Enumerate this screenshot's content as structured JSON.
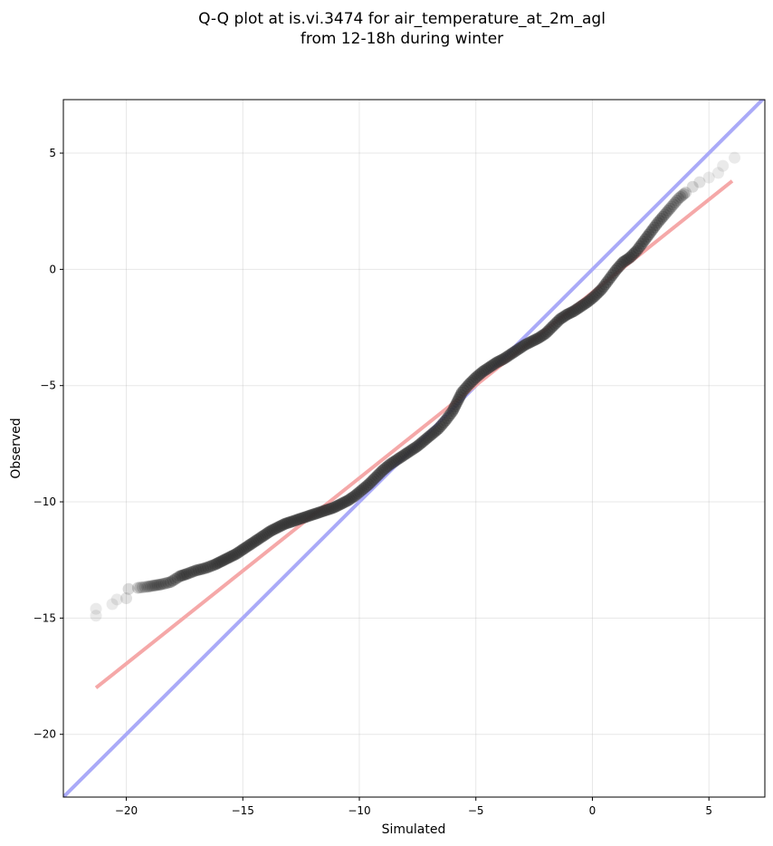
{
  "chart_data": {
    "type": "scatter",
    "title_line1": "Q-Q plot at is.vi.3474 for air_temperature_at_2m_agl",
    "title_line2": "from 12-18h during winter",
    "xlabel": "Simulated",
    "ylabel": "Observed",
    "xlim": [
      -22.7,
      7.4
    ],
    "ylim": [
      -22.7,
      7.3
    ],
    "xticks": [
      -20,
      -15,
      -10,
      -5,
      0,
      5
    ],
    "yticks": [
      -20,
      -15,
      -10,
      -5,
      0,
      5
    ],
    "xtick_labels": [
      "−20",
      "−15",
      "−10",
      "−5",
      "0",
      "5"
    ],
    "ytick_labels": [
      "−20",
      "−15",
      "−10",
      "−5",
      "0",
      "5"
    ],
    "grid": true,
    "identity_line": {
      "color": "#aaaaf8",
      "from": [
        -22.7,
        -22.7
      ],
      "to": [
        7.4,
        7.4
      ]
    },
    "fit_line": {
      "color": "#f5a8a8",
      "from": [
        -21.3,
        -18.0
      ],
      "to": [
        6.0,
        3.8
      ]
    },
    "points_color": "#333333",
    "quantile_points": [
      [
        -21.3,
        -14.9
      ],
      [
        -21.3,
        -14.6
      ],
      [
        -20.6,
        -14.4
      ],
      [
        -20.4,
        -14.2
      ],
      [
        -20.0,
        -14.15
      ],
      [
        -19.9,
        -13.75
      ],
      [
        -19.5,
        -13.7
      ],
      [
        -19.1,
        -13.65
      ],
      [
        -18.8,
        -13.6
      ],
      [
        -18.5,
        -13.55
      ],
      [
        -18.1,
        -13.45
      ],
      [
        -17.7,
        -13.2
      ],
      [
        -17.4,
        -13.1
      ],
      [
        -17.0,
        -12.95
      ],
      [
        -16.6,
        -12.85
      ],
      [
        -16.2,
        -12.7
      ],
      [
        -15.9,
        -12.55
      ],
      [
        -15.6,
        -12.4
      ],
      [
        -15.3,
        -12.25
      ],
      [
        -15.0,
        -12.05
      ],
      [
        -14.7,
        -11.85
      ],
      [
        -14.4,
        -11.65
      ],
      [
        -14.1,
        -11.45
      ],
      [
        -13.8,
        -11.25
      ],
      [
        -13.5,
        -11.1
      ],
      [
        -13.2,
        -10.95
      ],
      [
        -12.9,
        -10.85
      ],
      [
        -12.6,
        -10.75
      ],
      [
        -12.3,
        -10.65
      ],
      [
        -12.0,
        -10.55
      ],
      [
        -11.7,
        -10.45
      ],
      [
        -11.4,
        -10.35
      ],
      [
        -11.1,
        -10.25
      ],
      [
        -10.8,
        -10.1
      ],
      [
        -10.5,
        -9.95
      ],
      [
        -10.2,
        -9.75
      ],
      [
        -9.9,
        -9.5
      ],
      [
        -9.6,
        -9.25
      ],
      [
        -9.3,
        -8.95
      ],
      [
        -9.0,
        -8.65
      ],
      [
        -8.7,
        -8.4
      ],
      [
        -8.4,
        -8.2
      ],
      [
        -8.1,
        -8.0
      ],
      [
        -7.8,
        -7.8
      ],
      [
        -7.5,
        -7.6
      ],
      [
        -7.2,
        -7.35
      ],
      [
        -6.9,
        -7.1
      ],
      [
        -6.6,
        -6.85
      ],
      [
        -6.3,
        -6.5
      ],
      [
        -6.0,
        -6.1
      ],
      [
        -5.8,
        -5.7
      ],
      [
        -5.6,
        -5.3
      ],
      [
        -5.3,
        -4.95
      ],
      [
        -5.0,
        -4.65
      ],
      [
        -4.7,
        -4.4
      ],
      [
        -4.4,
        -4.2
      ],
      [
        -4.1,
        -4.0
      ],
      [
        -3.8,
        -3.85
      ],
      [
        -3.5,
        -3.65
      ],
      [
        -3.2,
        -3.45
      ],
      [
        -2.9,
        -3.25
      ],
      [
        -2.6,
        -3.1
      ],
      [
        -2.3,
        -2.95
      ],
      [
        -2.0,
        -2.75
      ],
      [
        -1.7,
        -2.45
      ],
      [
        -1.4,
        -2.15
      ],
      [
        -1.1,
        -1.95
      ],
      [
        -0.8,
        -1.8
      ],
      [
        -0.5,
        -1.6
      ],
      [
        -0.2,
        -1.4
      ],
      [
        0.1,
        -1.15
      ],
      [
        0.4,
        -0.85
      ],
      [
        0.7,
        -0.45
      ],
      [
        1.0,
        -0.05
      ],
      [
        1.3,
        0.3
      ],
      [
        1.6,
        0.5
      ],
      [
        1.9,
        0.8
      ],
      [
        2.2,
        1.2
      ],
      [
        2.5,
        1.6
      ],
      [
        2.8,
        2.0
      ],
      [
        3.1,
        2.35
      ],
      [
        3.4,
        2.7
      ],
      [
        3.7,
        3.05
      ],
      [
        4.0,
        3.3
      ],
      [
        4.3,
        3.55
      ],
      [
        4.6,
        3.75
      ],
      [
        5.0,
        3.95
      ],
      [
        5.4,
        4.15
      ],
      [
        5.6,
        4.45
      ],
      [
        6.1,
        4.8
      ]
    ]
  }
}
